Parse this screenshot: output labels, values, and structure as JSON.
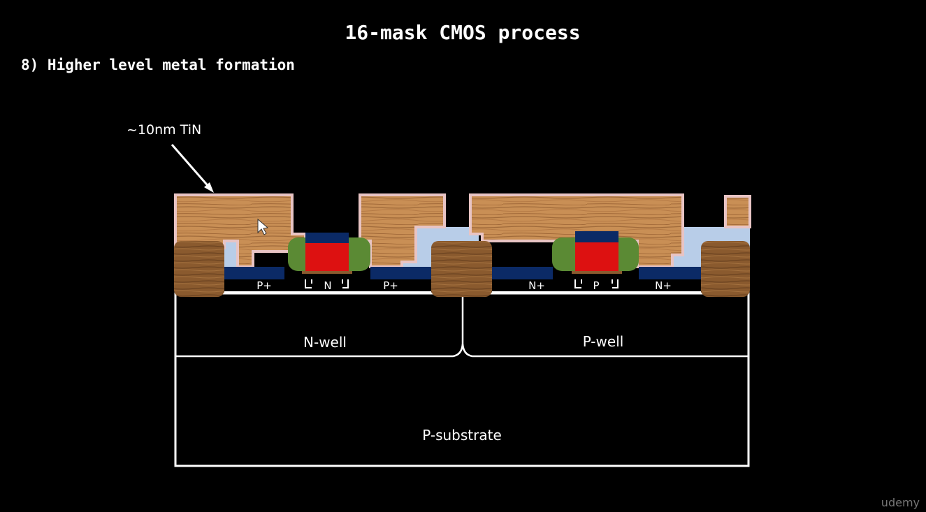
{
  "slide": {
    "title": "16-mask CMOS process",
    "step": "8) Higher level metal formation",
    "watermark": "udemy"
  },
  "diagram": {
    "callout": "~10nm TiN",
    "regions": {
      "nwell": "N-well",
      "pwell": "P-well",
      "substrate": "P-substrate"
    },
    "diffusions": {
      "pmos_source": "P+",
      "pmos_channel": "N",
      "pmos_drain": "P+",
      "nmos_source": "N+",
      "nmos_channel": "P",
      "nmos_drain": "N+"
    }
  },
  "colors": {
    "background": "#000000",
    "text": "#ffffff",
    "outline": "#ffffff",
    "metal": "#c98f55",
    "tin_liner": "#e8c4c4",
    "dielectric": "#b8cde8",
    "silicide": "#0b2a66",
    "poly_gate": "#dd1111",
    "spacer": "#5b8a34",
    "sti_oxide": "#8a5a2e",
    "watermark": "#777777"
  },
  "cursor": "arrow-cursor-icon"
}
